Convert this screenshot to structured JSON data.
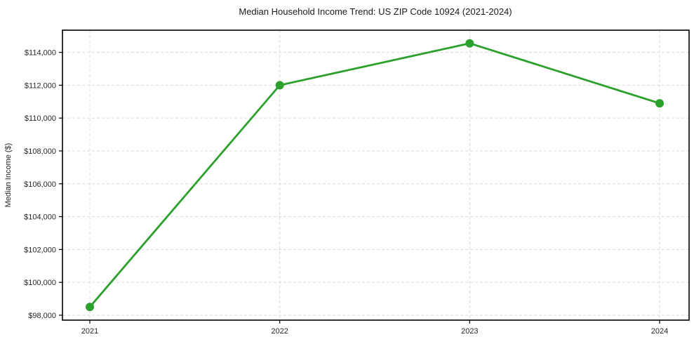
{
  "chart_data": {
    "type": "line",
    "title": "Median Household Income Trend: US ZIP Code 10924 (2021-2024)",
    "xlabel": "",
    "ylabel": "Median Income ($)",
    "categories": [
      "2021",
      "2022",
      "2023",
      "2024"
    ],
    "series": [
      {
        "name": "Median Household Income",
        "values": [
          98500,
          112000,
          114550,
          110900
        ]
      }
    ],
    "ylim": [
      97700,
      115350
    ],
    "yticks": [
      98000,
      100000,
      102000,
      104000,
      106000,
      108000,
      110000,
      112000,
      114000
    ],
    "ytick_labels": [
      "$98,000",
      "$100,000",
      "$102,000",
      "$104,000",
      "$106,000",
      "$108,000",
      "$110,000",
      "$112,000",
      "$114,000"
    ],
    "grid": true,
    "grid_style": "dashed",
    "legend": "none",
    "line_color": "#2ca02c",
    "marker": "circle",
    "marker_color": "#2ca02c",
    "grid_color": "#d9d9d9",
    "spine_color": "#000000",
    "tick_text_color": "#262626",
    "background_color": "#ffffff"
  }
}
